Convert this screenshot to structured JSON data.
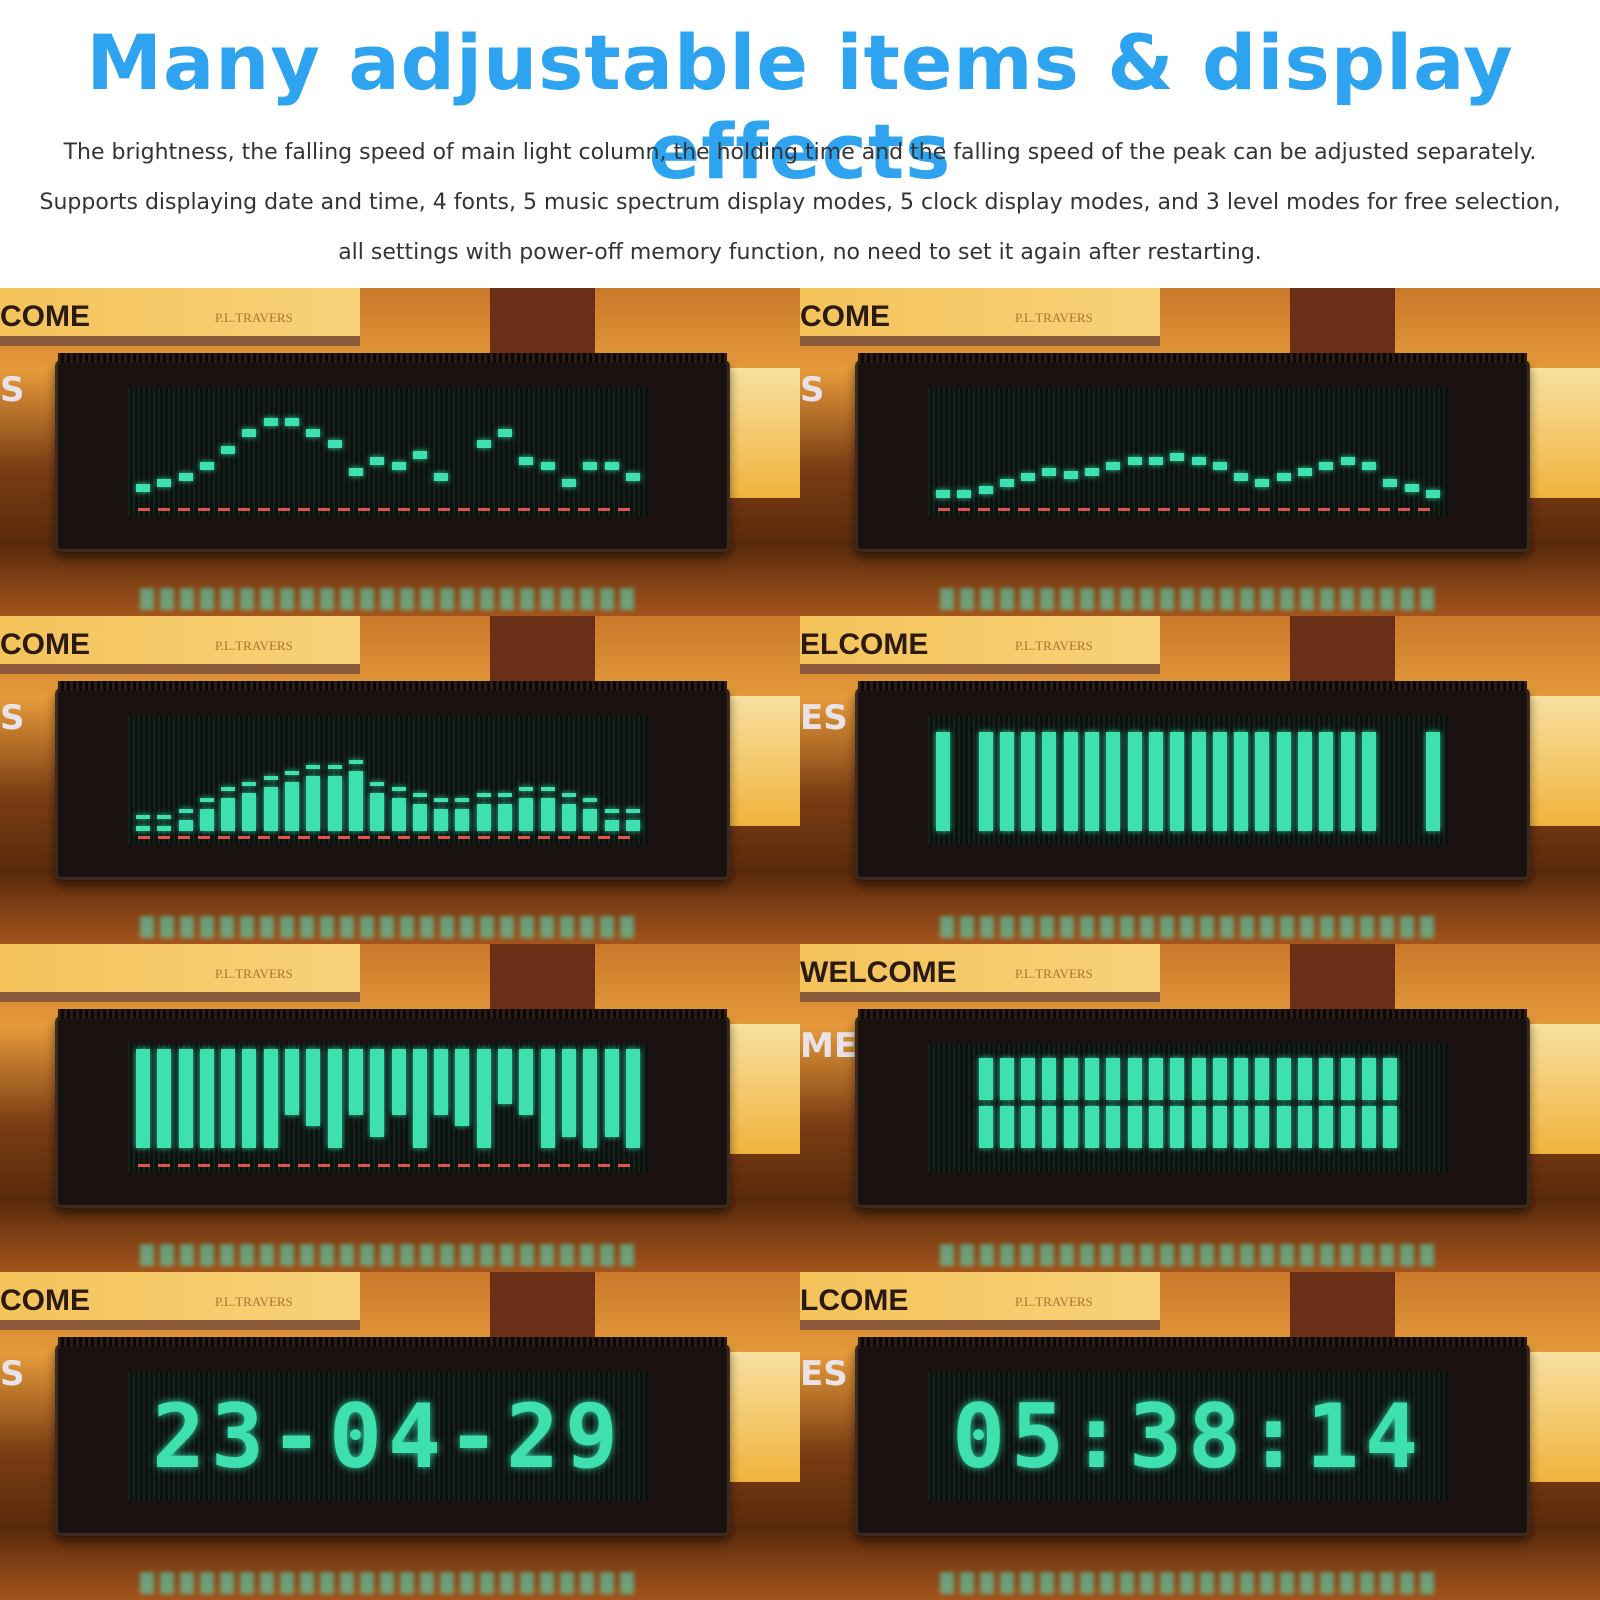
{
  "title": "Many adjustable items & display effects",
  "description": "The brightness, the falling speed of main light column, the holding time and the falling speed of the peak can be adjusted separately. Supports displaying date and time, 4 fonts, 5 music spectrum display modes, 5 clock display modes, and 3 level modes for free selection, all settings with power-off memory function, no need to set it again after restarting.",
  "colors": {
    "title": "#2ea3ef",
    "display": "#3fe0b0",
    "peak_line": "#e5534b"
  },
  "panels": [
    {
      "book_word": "COME",
      "book_author": "P.L.TRAVERS",
      "side_text": "S",
      "mode": "peak-dots",
      "base": true,
      "levels": [
        0.1,
        0.15,
        0.2,
        0.3,
        0.45,
        0.6,
        0.7,
        0.7,
        0.6,
        0.5,
        0.25,
        0.35,
        0.3,
        0.4,
        0.2,
        null,
        0.5,
        0.6,
        0.35,
        0.3,
        0.15,
        0.3,
        0.3,
        0.2
      ]
    },
    {
      "book_word": "COME",
      "book_author": "P.L.TRAVERS",
      "side_text": "S",
      "mode": "peak-dots",
      "base": true,
      "levels": [
        0.05,
        0.05,
        0.08,
        0.15,
        0.2,
        0.25,
        0.22,
        0.25,
        0.3,
        0.35,
        0.35,
        0.38,
        0.35,
        0.3,
        0.2,
        0.15,
        0.2,
        0.25,
        0.3,
        0.35,
        0.3,
        0.15,
        0.1,
        0.05
      ]
    },
    {
      "book_word": "COME",
      "book_author": "P.L.TRAVERS",
      "side_text": "S",
      "mode": "bars-peaks",
      "base": true,
      "levels": [
        0.05,
        0.05,
        0.1,
        0.2,
        0.3,
        0.35,
        0.4,
        0.45,
        0.5,
        0.5,
        0.55,
        0.35,
        0.3,
        0.25,
        0.2,
        0.2,
        0.25,
        0.25,
        0.3,
        0.3,
        0.25,
        0.2,
        0.1,
        0.1
      ]
    },
    {
      "book_word": "ELCOME",
      "book_author": "P.L.TRAVERS",
      "side_text": "ES",
      "mode": "bars",
      "base": false,
      "levels": [
        0.9,
        0,
        0.9,
        0.9,
        0.9,
        0.9,
        0.9,
        0.9,
        0.9,
        0.9,
        0.9,
        0.9,
        0.9,
        0.9,
        0.9,
        0.9,
        0.9,
        0.9,
        0.9,
        0.9,
        0.9,
        0,
        0,
        0.9
      ]
    },
    {
      "book_word": "",
      "book_author": "P.L.TRAVERS",
      "side_text": "",
      "mode": "hanging",
      "base": true,
      "levels": [
        0.9,
        0.9,
        0.9,
        0.9,
        0.9,
        0.9,
        0.9,
        0.6,
        0.7,
        0.9,
        0.6,
        0.8,
        0.6,
        0.9,
        0.6,
        0.7,
        0.9,
        0.5,
        0.6,
        0.9,
        0.8,
        0.9,
        0.8,
        0.9
      ]
    },
    {
      "book_word": "WELCOME",
      "book_author": "P.L.TRAVERS",
      "side_text": "ME",
      "mode": "split",
      "base": false,
      "levels": [
        0,
        0,
        0.8,
        0.8,
        0.8,
        0.8,
        0.8,
        0.8,
        0.8,
        0.8,
        0.8,
        0.8,
        0.8,
        0.8,
        0.8,
        0.8,
        0.8,
        0.8,
        0.8,
        0.8,
        0.8,
        0.8,
        0,
        0
      ]
    },
    {
      "book_word": "COME",
      "book_author": "P.L.TRAVERS",
      "side_text": "S",
      "mode": "clock",
      "clock": "23-04-29"
    },
    {
      "book_word": "LCOME",
      "book_author": "P.L.TRAVERS",
      "side_text": "ES",
      "mode": "clock",
      "clock": "05:38:14"
    }
  ]
}
